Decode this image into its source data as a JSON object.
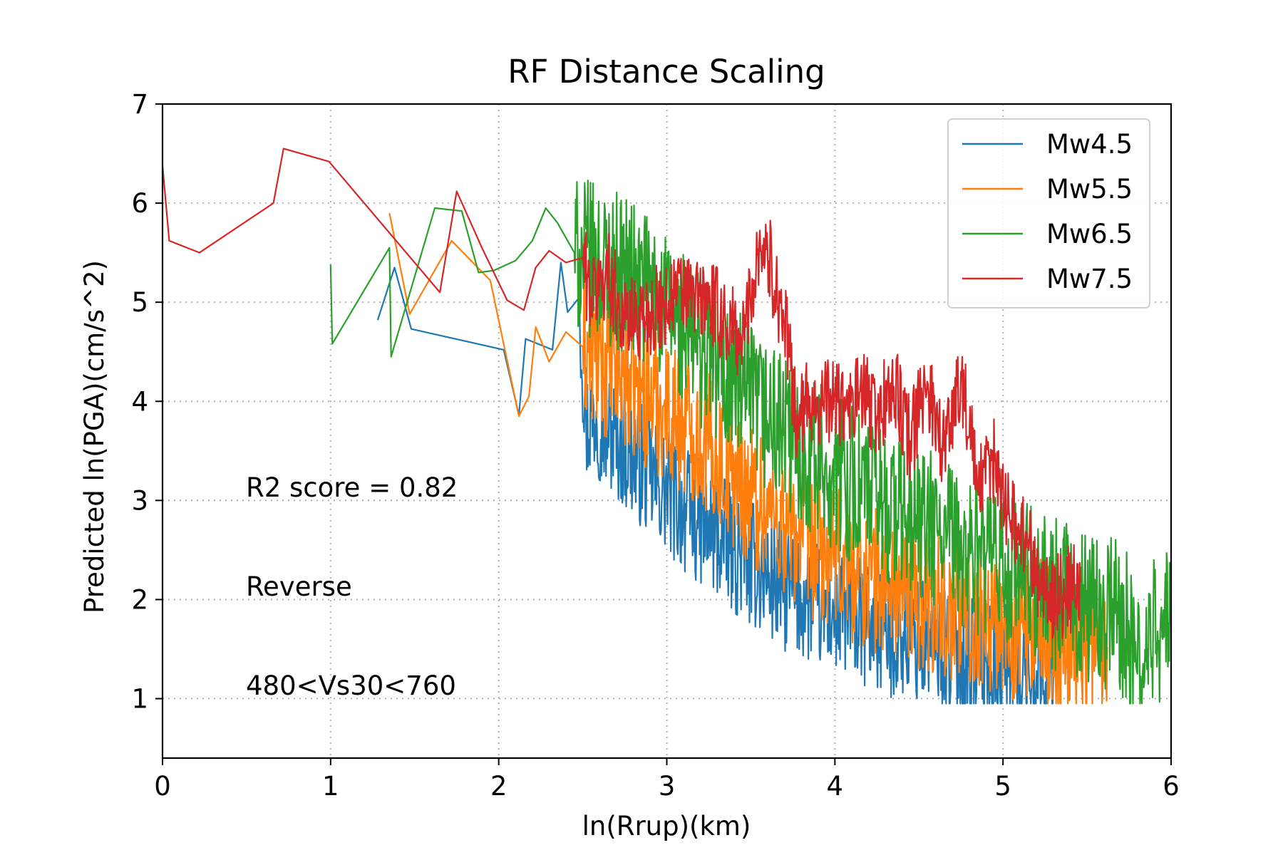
{
  "chart_data": {
    "type": "line",
    "title": "RF Distance Scaling",
    "xlabel": "ln(Rrup)(km)",
    "ylabel": "Predicted ln(PGA)(cm/s^2)",
    "xlim": [
      0,
      6
    ],
    "ylim": [
      0.4,
      7
    ],
    "xticks": [
      0,
      1,
      2,
      3,
      4,
      5,
      6
    ],
    "yticks": [
      1,
      2,
      3,
      4,
      5,
      6,
      7
    ],
    "grid": true,
    "legend_position": "upper right",
    "annotations": [
      "R2 score = 0.82",
      "Reverse",
      "480<Vs30<760"
    ],
    "series": [
      {
        "name": "Mw4.5",
        "color": "#1f77b4",
        "x": [
          1.28,
          1.38,
          1.48,
          2.03,
          2.12,
          2.16,
          2.32,
          2.37,
          2.41,
          2.48,
          2.52,
          2.58,
          2.65,
          2.72,
          2.8,
          2.88,
          2.95,
          3.02,
          3.1,
          3.18,
          3.25,
          3.32,
          3.4,
          3.48,
          3.55,
          3.62,
          3.7,
          3.78,
          3.85,
          3.92,
          4.0,
          4.1,
          4.2,
          4.3,
          4.4,
          4.5,
          4.6,
          4.7,
          4.8,
          4.9,
          5.0,
          5.1,
          5.2,
          5.3
        ],
        "y": [
          4.82,
          5.35,
          4.73,
          4.52,
          3.86,
          4.63,
          4.52,
          5.4,
          4.9,
          5.05,
          3.75,
          3.9,
          3.7,
          3.6,
          3.45,
          3.3,
          3.15,
          3.05,
          2.9,
          2.8,
          2.7,
          2.6,
          2.5,
          2.4,
          2.3,
          2.2,
          2.12,
          2.05,
          1.98,
          1.92,
          1.86,
          1.8,
          1.74,
          1.68,
          1.62,
          1.57,
          1.52,
          1.47,
          1.42,
          1.38,
          1.34,
          1.31,
          1.28,
          1.26
        ],
        "noise": 0.65
      },
      {
        "name": "Mw5.5",
        "color": "#ff7f0e",
        "x": [
          1.35,
          1.47,
          1.72,
          1.95,
          2.12,
          2.18,
          2.22,
          2.3,
          2.4,
          2.5,
          2.58,
          2.66,
          2.74,
          2.82,
          2.9,
          2.98,
          3.06,
          3.14,
          3.22,
          3.3,
          3.38,
          3.46,
          3.54,
          3.62,
          3.7,
          3.78,
          3.86,
          3.94,
          4.02,
          4.12,
          4.22,
          4.32,
          4.42,
          4.52,
          4.62,
          4.72,
          4.82,
          4.92,
          5.02,
          5.12,
          5.22,
          5.32,
          5.42,
          5.52,
          5.62
        ],
        "y": [
          5.9,
          4.88,
          5.62,
          5.22,
          3.85,
          4.05,
          4.75,
          4.4,
          4.7,
          4.55,
          4.45,
          4.35,
          4.25,
          4.15,
          4.05,
          3.95,
          3.85,
          3.75,
          3.6,
          3.45,
          3.3,
          3.15,
          3.0,
          2.88,
          2.76,
          2.65,
          2.55,
          2.46,
          2.38,
          2.3,
          2.22,
          2.15,
          2.08,
          2.02,
          1.96,
          1.9,
          1.85,
          1.8,
          1.75,
          1.7,
          1.66,
          1.62,
          1.58,
          1.55,
          1.52
        ],
        "noise": 0.75
      },
      {
        "name": "Mw6.5",
        "color": "#2ca02c",
        "x": [
          1.0,
          1.01,
          1.35,
          1.36,
          1.62,
          1.78,
          1.88,
          1.97,
          2.1,
          2.2,
          2.28,
          2.35,
          2.45,
          2.5,
          2.58,
          2.66,
          2.74,
          2.82,
          2.9,
          2.98,
          3.06,
          3.14,
          3.22,
          3.3,
          3.38,
          3.46,
          3.54,
          3.62,
          3.7,
          3.78,
          3.86,
          3.94,
          4.02,
          4.12,
          4.22,
          4.32,
          4.42,
          4.52,
          4.62,
          4.72,
          4.82,
          4.92,
          5.02,
          5.12,
          5.22,
          5.32,
          5.42,
          5.52,
          5.62,
          5.72,
          5.8,
          5.86,
          5.92,
          6.0
        ],
        "y": [
          5.38,
          4.58,
          5.55,
          4.45,
          5.95,
          5.92,
          5.3,
          5.32,
          5.42,
          5.62,
          5.95,
          5.8,
          5.5,
          5.45,
          5.4,
          5.35,
          5.3,
          5.2,
          5.1,
          4.95,
          4.8,
          4.65,
          4.5,
          4.35,
          4.2,
          4.05,
          3.92,
          3.8,
          3.68,
          3.56,
          3.45,
          3.35,
          3.25,
          3.15,
          3.05,
          2.95,
          2.85,
          2.75,
          2.65,
          2.55,
          2.46,
          2.37,
          2.28,
          2.2,
          2.12,
          2.05,
          1.98,
          1.92,
          1.86,
          1.8,
          1.25,
          1.5,
          1.68,
          1.75
        ],
        "noise": 0.8
      },
      {
        "name": "Mw7.5",
        "color": "#d62728",
        "x": [
          0.0,
          0.04,
          0.22,
          0.66,
          0.72,
          0.99,
          1.65,
          1.75,
          1.9,
          2.05,
          2.15,
          2.22,
          2.3,
          2.4,
          2.5,
          2.55,
          2.65,
          2.75,
          2.9,
          2.98,
          3.05,
          3.15,
          3.25,
          3.35,
          3.45,
          3.55,
          3.6,
          3.7,
          3.78,
          3.85,
          3.92,
          4.0,
          4.08,
          4.15,
          4.25,
          4.35,
          4.45,
          4.55,
          4.65,
          4.75,
          4.85,
          4.95,
          5.05,
          5.15,
          5.25,
          5.35,
          5.46
        ],
        "y": [
          6.38,
          5.62,
          5.5,
          6.0,
          6.55,
          6.42,
          5.1,
          6.12,
          5.55,
          5.02,
          4.92,
          5.35,
          5.52,
          5.4,
          5.45,
          5.05,
          5.3,
          4.8,
          4.9,
          4.95,
          5.1,
          5.05,
          5.0,
          4.8,
          4.62,
          5.6,
          5.5,
          4.8,
          3.75,
          4.05,
          3.95,
          4.05,
          3.85,
          4.1,
          3.85,
          4.15,
          3.6,
          4.2,
          3.5,
          4.3,
          3.1,
          3.4,
          2.8,
          2.6,
          2.0,
          2.05,
          2.17
        ],
        "noise": 0.45
      }
    ]
  }
}
